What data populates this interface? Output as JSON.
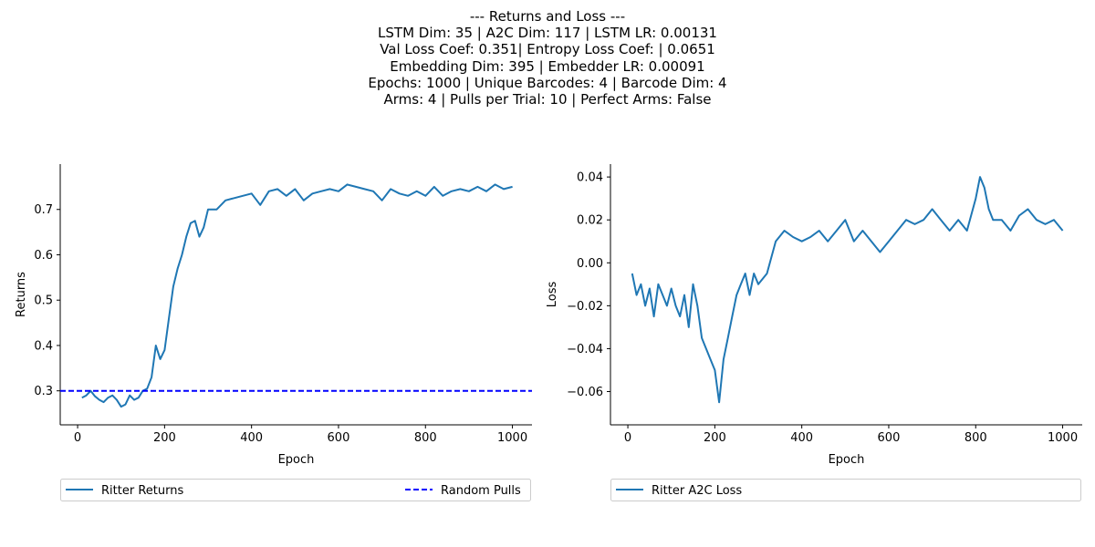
{
  "figure": {
    "title_lines": [
      "--- Returns and Loss ---",
      "LSTM Dim: 35 | A2C Dim: 117 | LSTM LR: 0.00131",
      "Val Loss Coef: 0.351| Entropy Loss Coef: | 0.0651",
      "Embedding Dim: 395 | Embedder LR: 0.00091",
      "Epochs: 1000 | Unique Barcodes: 4 | Barcode Dim: 4",
      "Arms: 4 | Pulls per Trial: 10 | Perfect Arms: False"
    ]
  },
  "colors": {
    "series_blue": "#1f77b4",
    "random_line": "#0000ff"
  },
  "chart_data": [
    {
      "type": "line",
      "xlabel": "Epoch",
      "ylabel": "Returns",
      "xlim": [
        -40,
        1045
      ],
      "ylim": [
        0.225,
        0.8
      ],
      "xticks": [
        0,
        200,
        400,
        600,
        800,
        1000
      ],
      "yticks": [
        0.3,
        0.4,
        0.5,
        0.6,
        0.7
      ],
      "ytick_labels": [
        "0.3",
        "0.4",
        "0.5",
        "0.6",
        "0.7"
      ],
      "grid": false,
      "legend_placement": "below",
      "series": [
        {
          "name": "Ritter Returns",
          "style": "solid",
          "x": [
            10,
            20,
            30,
            40,
            50,
            60,
            70,
            80,
            90,
            100,
            110,
            120,
            130,
            140,
            150,
            160,
            170,
            180,
            190,
            200,
            210,
            220,
            230,
            240,
            250,
            260,
            270,
            280,
            290,
            300,
            320,
            340,
            360,
            380,
            400,
            420,
            440,
            460,
            480,
            500,
            520,
            540,
            560,
            580,
            600,
            620,
            640,
            660,
            680,
            700,
            720,
            740,
            760,
            780,
            800,
            820,
            840,
            860,
            880,
            900,
            920,
            940,
            960,
            980,
            1000
          ],
          "values": [
            0.285,
            0.29,
            0.3,
            0.288,
            0.28,
            0.275,
            0.285,
            0.29,
            0.28,
            0.265,
            0.27,
            0.29,
            0.28,
            0.285,
            0.3,
            0.305,
            0.33,
            0.4,
            0.37,
            0.39,
            0.46,
            0.53,
            0.57,
            0.6,
            0.64,
            0.67,
            0.675,
            0.64,
            0.66,
            0.7,
            0.7,
            0.72,
            0.725,
            0.73,
            0.735,
            0.71,
            0.74,
            0.745,
            0.73,
            0.745,
            0.72,
            0.735,
            0.74,
            0.745,
            0.74,
            0.755,
            0.75,
            0.745,
            0.74,
            0.72,
            0.745,
            0.735,
            0.73,
            0.74,
            0.73,
            0.75,
            0.73,
            0.74,
            0.745,
            0.74,
            0.75,
            0.74,
            0.755,
            0.745,
            0.75
          ]
        },
        {
          "name": "Random Pulls",
          "style": "dashed",
          "constant": 0.3
        }
      ]
    },
    {
      "type": "line",
      "xlabel": "Epoch",
      "ylabel": "Loss",
      "xlim": [
        -40,
        1045
      ],
      "ylim": [
        -0.0755,
        0.046
      ],
      "xticks": [
        0,
        200,
        400,
        600,
        800,
        1000
      ],
      "yticks": [
        -0.06,
        -0.04,
        -0.02,
        0.0,
        0.02,
        0.04
      ],
      "ytick_labels": [
        "−0.06",
        "−0.04",
        "−0.02",
        "0.00",
        "0.02",
        "0.04"
      ],
      "grid": false,
      "legend_placement": "below",
      "series": [
        {
          "name": "Ritter A2C Loss",
          "style": "solid",
          "x": [
            10,
            20,
            30,
            40,
            50,
            60,
            70,
            80,
            90,
            100,
            110,
            120,
            130,
            140,
            150,
            160,
            170,
            180,
            190,
            200,
            210,
            220,
            230,
            240,
            250,
            260,
            270,
            280,
            290,
            300,
            320,
            340,
            360,
            380,
            400,
            420,
            440,
            460,
            480,
            500,
            520,
            540,
            560,
            580,
            600,
            620,
            640,
            660,
            680,
            700,
            720,
            740,
            760,
            780,
            800,
            810,
            820,
            830,
            840,
            860,
            880,
            900,
            920,
            940,
            960,
            980,
            1000
          ],
          "values": [
            -0.005,
            -0.015,
            -0.01,
            -0.02,
            -0.012,
            -0.025,
            -0.01,
            -0.015,
            -0.02,
            -0.012,
            -0.02,
            -0.025,
            -0.015,
            -0.03,
            -0.01,
            -0.02,
            -0.035,
            -0.04,
            -0.045,
            -0.05,
            -0.065,
            -0.045,
            -0.035,
            -0.025,
            -0.015,
            -0.01,
            -0.005,
            -0.015,
            -0.005,
            -0.01,
            -0.005,
            0.01,
            0.015,
            0.012,
            0.01,
            0.012,
            0.015,
            0.01,
            0.015,
            0.02,
            0.01,
            0.015,
            0.01,
            0.005,
            0.01,
            0.015,
            0.02,
            0.018,
            0.02,
            0.025,
            0.02,
            0.015,
            0.02,
            0.015,
            0.03,
            0.04,
            0.035,
            0.025,
            0.02,
            0.02,
            0.015,
            0.022,
            0.025,
            0.02,
            0.018,
            0.02,
            0.015
          ]
        }
      ]
    }
  ]
}
